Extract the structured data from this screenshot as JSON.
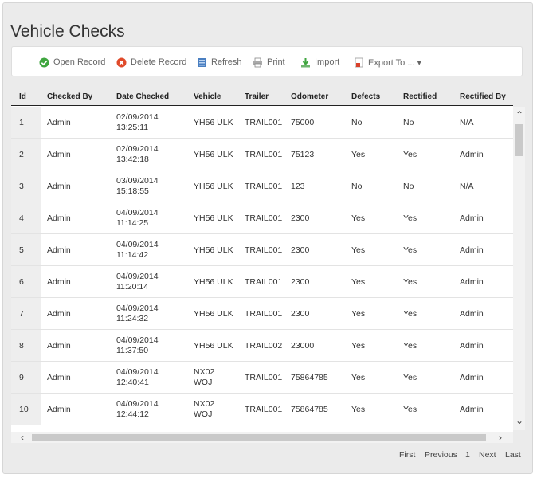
{
  "page": {
    "title": "Vehicle Checks"
  },
  "toolbar": {
    "open_record": "Open Record",
    "delete_record": "Delete Record",
    "refresh": "Refresh",
    "print": "Print",
    "import": "Import",
    "export_to": "Export To ... ▾"
  },
  "icons": {
    "open": "check-circle-icon",
    "delete": "delete-circle-icon",
    "refresh": "refresh-icon",
    "print": "print-icon",
    "import": "import-icon",
    "export": "export-icon"
  },
  "colors": {
    "open": "#3fa63f",
    "delete": "#e04a2a",
    "refresh": "#4a7fc1"
  },
  "table": {
    "columns": [
      "Id",
      "Checked By",
      "Date Checked",
      "Vehicle",
      "Trailer",
      "Odometer",
      "Defects",
      "Rectified",
      "Rectified By"
    ],
    "rows": [
      {
        "id": "1",
        "by": "Admin",
        "date": "02/09/2014",
        "time": "13:25:11",
        "vehicle": "YH56 ULK",
        "vehicle2": "",
        "trailer": "TRAIL001",
        "odometer": "75000",
        "defects": "No",
        "rectified": "No",
        "rectified_by": "N/A"
      },
      {
        "id": "2",
        "by": "Admin",
        "date": "02/09/2014",
        "time": "13:42:18",
        "vehicle": "YH56 ULK",
        "vehicle2": "",
        "trailer": "TRAIL001",
        "odometer": "75123",
        "defects": "Yes",
        "rectified": "Yes",
        "rectified_by": "Admin"
      },
      {
        "id": "3",
        "by": "Admin",
        "date": "03/09/2014",
        "time": "15:18:55",
        "vehicle": "YH56 ULK",
        "vehicle2": "",
        "trailer": "TRAIL001",
        "odometer": "123",
        "defects": "No",
        "rectified": "No",
        "rectified_by": "N/A"
      },
      {
        "id": "4",
        "by": "Admin",
        "date": "04/09/2014",
        "time": "11:14:25",
        "vehicle": "YH56 ULK",
        "vehicle2": "",
        "trailer": "TRAIL001",
        "odometer": "2300",
        "defects": "Yes",
        "rectified": "Yes",
        "rectified_by": "Admin"
      },
      {
        "id": "5",
        "by": "Admin",
        "date": "04/09/2014",
        "time": "11:14:42",
        "vehicle": "YH56 ULK",
        "vehicle2": "",
        "trailer": "TRAIL001",
        "odometer": "2300",
        "defects": "Yes",
        "rectified": "Yes",
        "rectified_by": "Admin"
      },
      {
        "id": "6",
        "by": "Admin",
        "date": "04/09/2014",
        "time": "11:20:14",
        "vehicle": "YH56 ULK",
        "vehicle2": "",
        "trailer": "TRAIL001",
        "odometer": "2300",
        "defects": "Yes",
        "rectified": "Yes",
        "rectified_by": "Admin"
      },
      {
        "id": "7",
        "by": "Admin",
        "date": "04/09/2014",
        "time": "11:24:32",
        "vehicle": "YH56 ULK",
        "vehicle2": "",
        "trailer": "TRAIL001",
        "odometer": "2300",
        "defects": "Yes",
        "rectified": "Yes",
        "rectified_by": "Admin"
      },
      {
        "id": "8",
        "by": "Admin",
        "date": "04/09/2014",
        "time": "11:37:50",
        "vehicle": "YH56 ULK",
        "vehicle2": "",
        "trailer": "TRAIL002",
        "odometer": "23000",
        "defects": "Yes",
        "rectified": "Yes",
        "rectified_by": "Admin"
      },
      {
        "id": "9",
        "by": "Admin",
        "date": "04/09/2014",
        "time": "12:40:41",
        "vehicle": "NX02",
        "vehicle2": "WOJ",
        "trailer": "TRAIL001",
        "odometer": "75864785",
        "defects": "Yes",
        "rectified": "Yes",
        "rectified_by": "Admin"
      },
      {
        "id": "10",
        "by": "Admin",
        "date": "04/09/2014",
        "time": "12:44:12",
        "vehicle": "NX02",
        "vehicle2": "WOJ",
        "trailer": "TRAIL001",
        "odometer": "75864785",
        "defects": "Yes",
        "rectified": "Yes",
        "rectified_by": "Admin"
      }
    ]
  },
  "pager": {
    "first": "First",
    "previous": "Previous",
    "page": "1",
    "next": "Next",
    "last": "Last"
  }
}
